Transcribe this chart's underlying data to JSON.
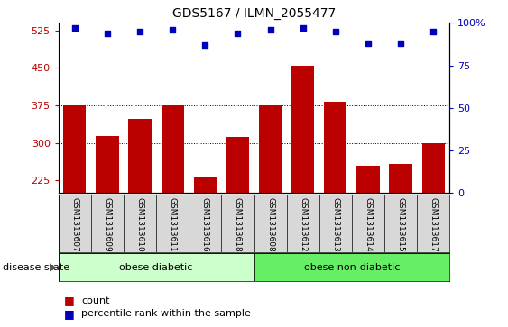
{
  "title": "GDS5167 / ILMN_2055477",
  "samples": [
    "GSM1313607",
    "GSM1313609",
    "GSM1313610",
    "GSM1313611",
    "GSM1313616",
    "GSM1313618",
    "GSM1313608",
    "GSM1313612",
    "GSM1313613",
    "GSM1313614",
    "GSM1313615",
    "GSM1313617"
  ],
  "counts": [
    375,
    313,
    348,
    375,
    233,
    312,
    375,
    455,
    382,
    255,
    258,
    300
  ],
  "percentiles": [
    97,
    94,
    95,
    96,
    87,
    94,
    96,
    97,
    95,
    88,
    88,
    95
  ],
  "group_labels": [
    "obese diabetic",
    "obese non-diabetic"
  ],
  "group1_color": "#ccffcc",
  "group2_color": "#66ee66",
  "bar_color": "#bb0000",
  "dot_color": "#0000bb",
  "ylim_left": [
    200,
    540
  ],
  "ylim_right": [
    0,
    100
  ],
  "yticks_left": [
    225,
    300,
    375,
    450,
    525
  ],
  "yticks_right": [
    0,
    25,
    50,
    75,
    100
  ],
  "grid_values": [
    300,
    375,
    450
  ],
  "tick_area_color": "#d8d8d8",
  "n_group1": 6,
  "n_group2": 6
}
